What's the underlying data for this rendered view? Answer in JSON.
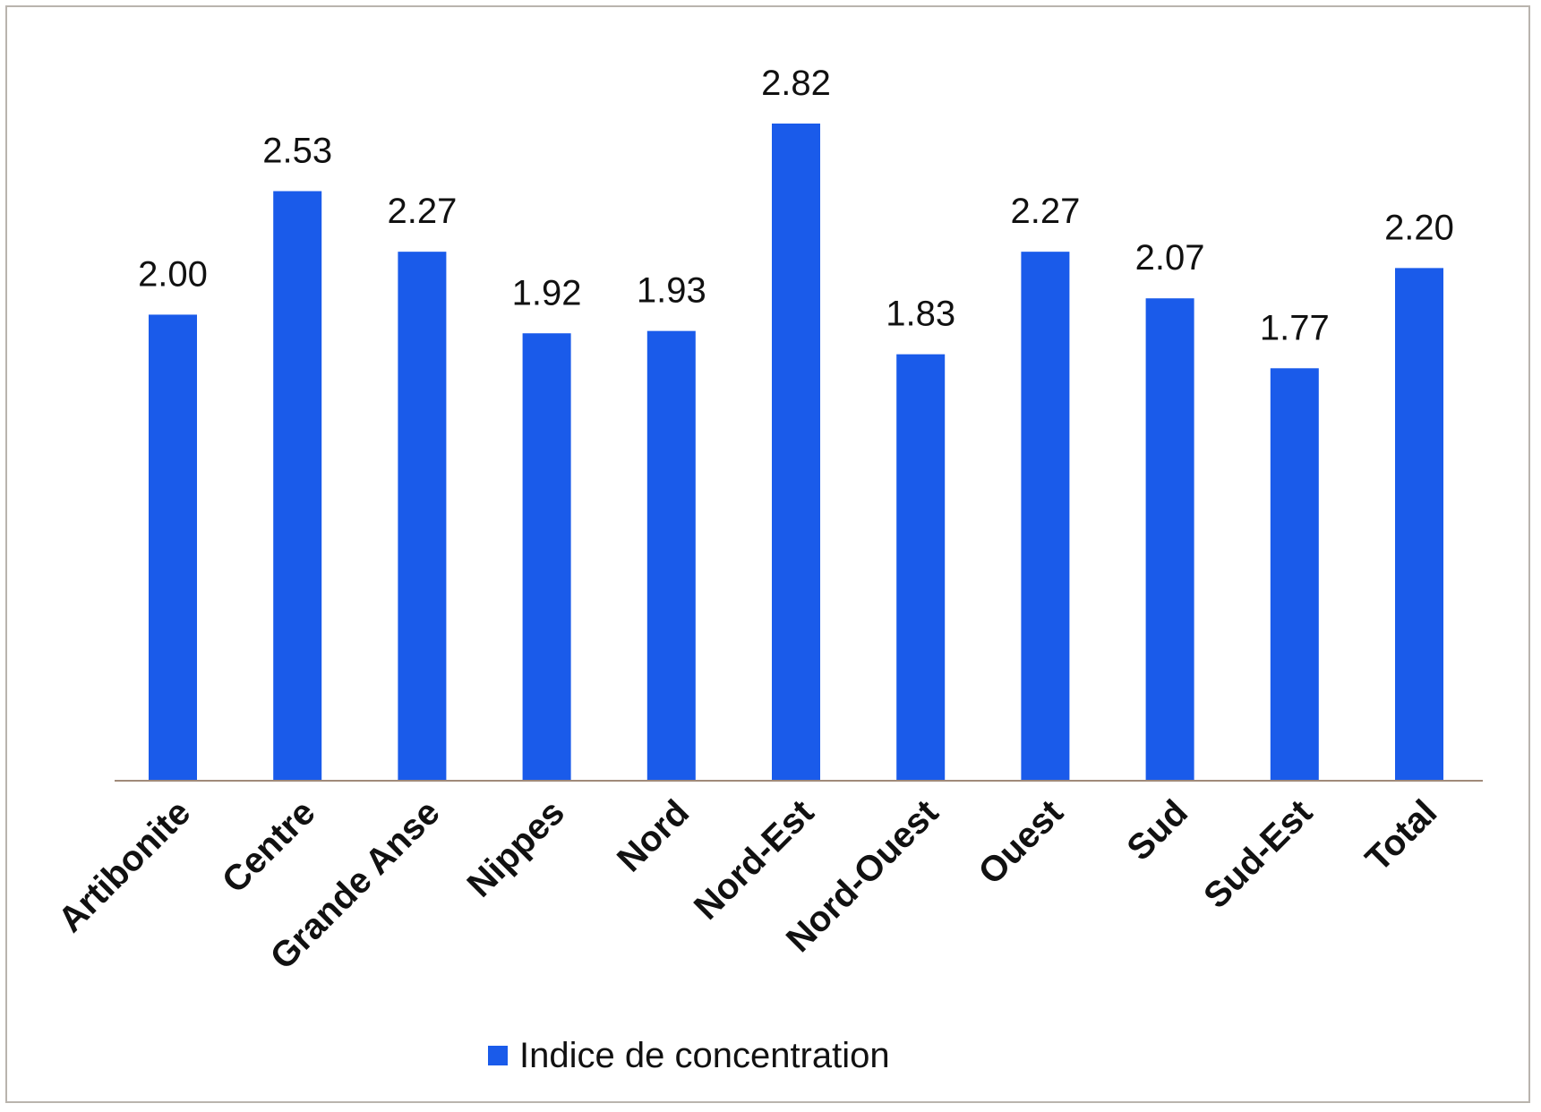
{
  "chart_data": {
    "type": "bar",
    "categories": [
      "Artibonite",
      "Centre",
      "Grande Anse",
      "Nippes",
      "Nord",
      "Nord-Est",
      "Nord-Ouest",
      "Ouest",
      "Sud",
      "Sud-Est",
      "Total"
    ],
    "series": [
      {
        "name": "Indice de concentration",
        "values": [
          2.0,
          2.53,
          2.27,
          1.92,
          1.93,
          2.82,
          1.83,
          2.27,
          2.07,
          1.77,
          2.2
        ],
        "labels": [
          "2.00",
          "2.53",
          "2.27",
          "1.92",
          "1.93",
          "2.82",
          "1.83",
          "2.27",
          "2.07",
          "1.77",
          "2.20"
        ],
        "color": "#1a5bea"
      }
    ],
    "ylim": [
      0,
      3.0
    ],
    "grid": false,
    "legend_position": "bottom",
    "axis_color": "#a08a7a"
  }
}
